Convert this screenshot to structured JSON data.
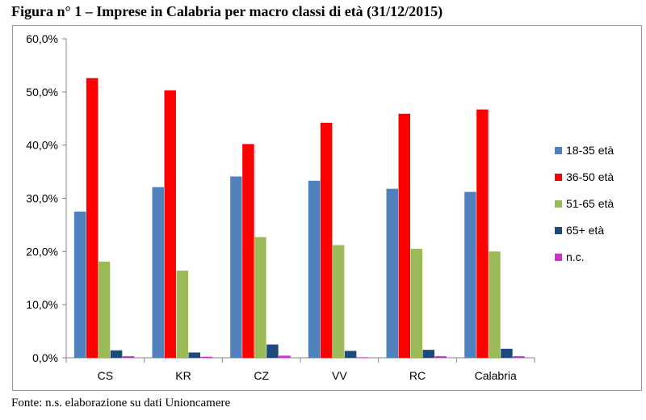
{
  "page": {
    "title": "Figura n° 1 – Imprese in Calabria per macro classi di età (31/12/2015)",
    "source": "Fonte: n.s. elaborazione su dati Unioncamere"
  },
  "chart_data": {
    "type": "bar",
    "categories": [
      "CS",
      "KR",
      "CZ",
      "VV",
      "RC",
      "Calabria"
    ],
    "series": [
      {
        "name": "18-35 età",
        "color": "#4f81bd",
        "values": [
          27.5,
          32.1,
          34.1,
          33.3,
          31.8,
          31.2
        ]
      },
      {
        "name": "36-50 età",
        "color": "#ff0000",
        "values": [
          52.6,
          50.3,
          40.2,
          44.2,
          45.9,
          46.7
        ]
      },
      {
        "name": "51-65 età",
        "color": "#9bbb59",
        "values": [
          18.1,
          16.4,
          22.7,
          21.2,
          20.5,
          20.0
        ]
      },
      {
        "name": "65+ età",
        "color": "#1f497d",
        "values": [
          1.4,
          1.0,
          2.5,
          1.3,
          1.5,
          1.7
        ]
      },
      {
        "name": "n.c.",
        "color": "#cc33cc",
        "values": [
          0.3,
          0.2,
          0.4,
          0.1,
          0.3,
          0.3
        ]
      }
    ],
    "yticks": [
      "0,0%",
      "10,0%",
      "20,0%",
      "30,0%",
      "40,0%",
      "50,0%",
      "60,0%"
    ],
    "ylim": [
      0,
      60
    ],
    "grid": false,
    "legend": "right",
    "title": "Figura n° 1 – Imprese in Calabria per macro classi di età (31/12/2015)",
    "xlabel": "",
    "ylabel": ""
  }
}
